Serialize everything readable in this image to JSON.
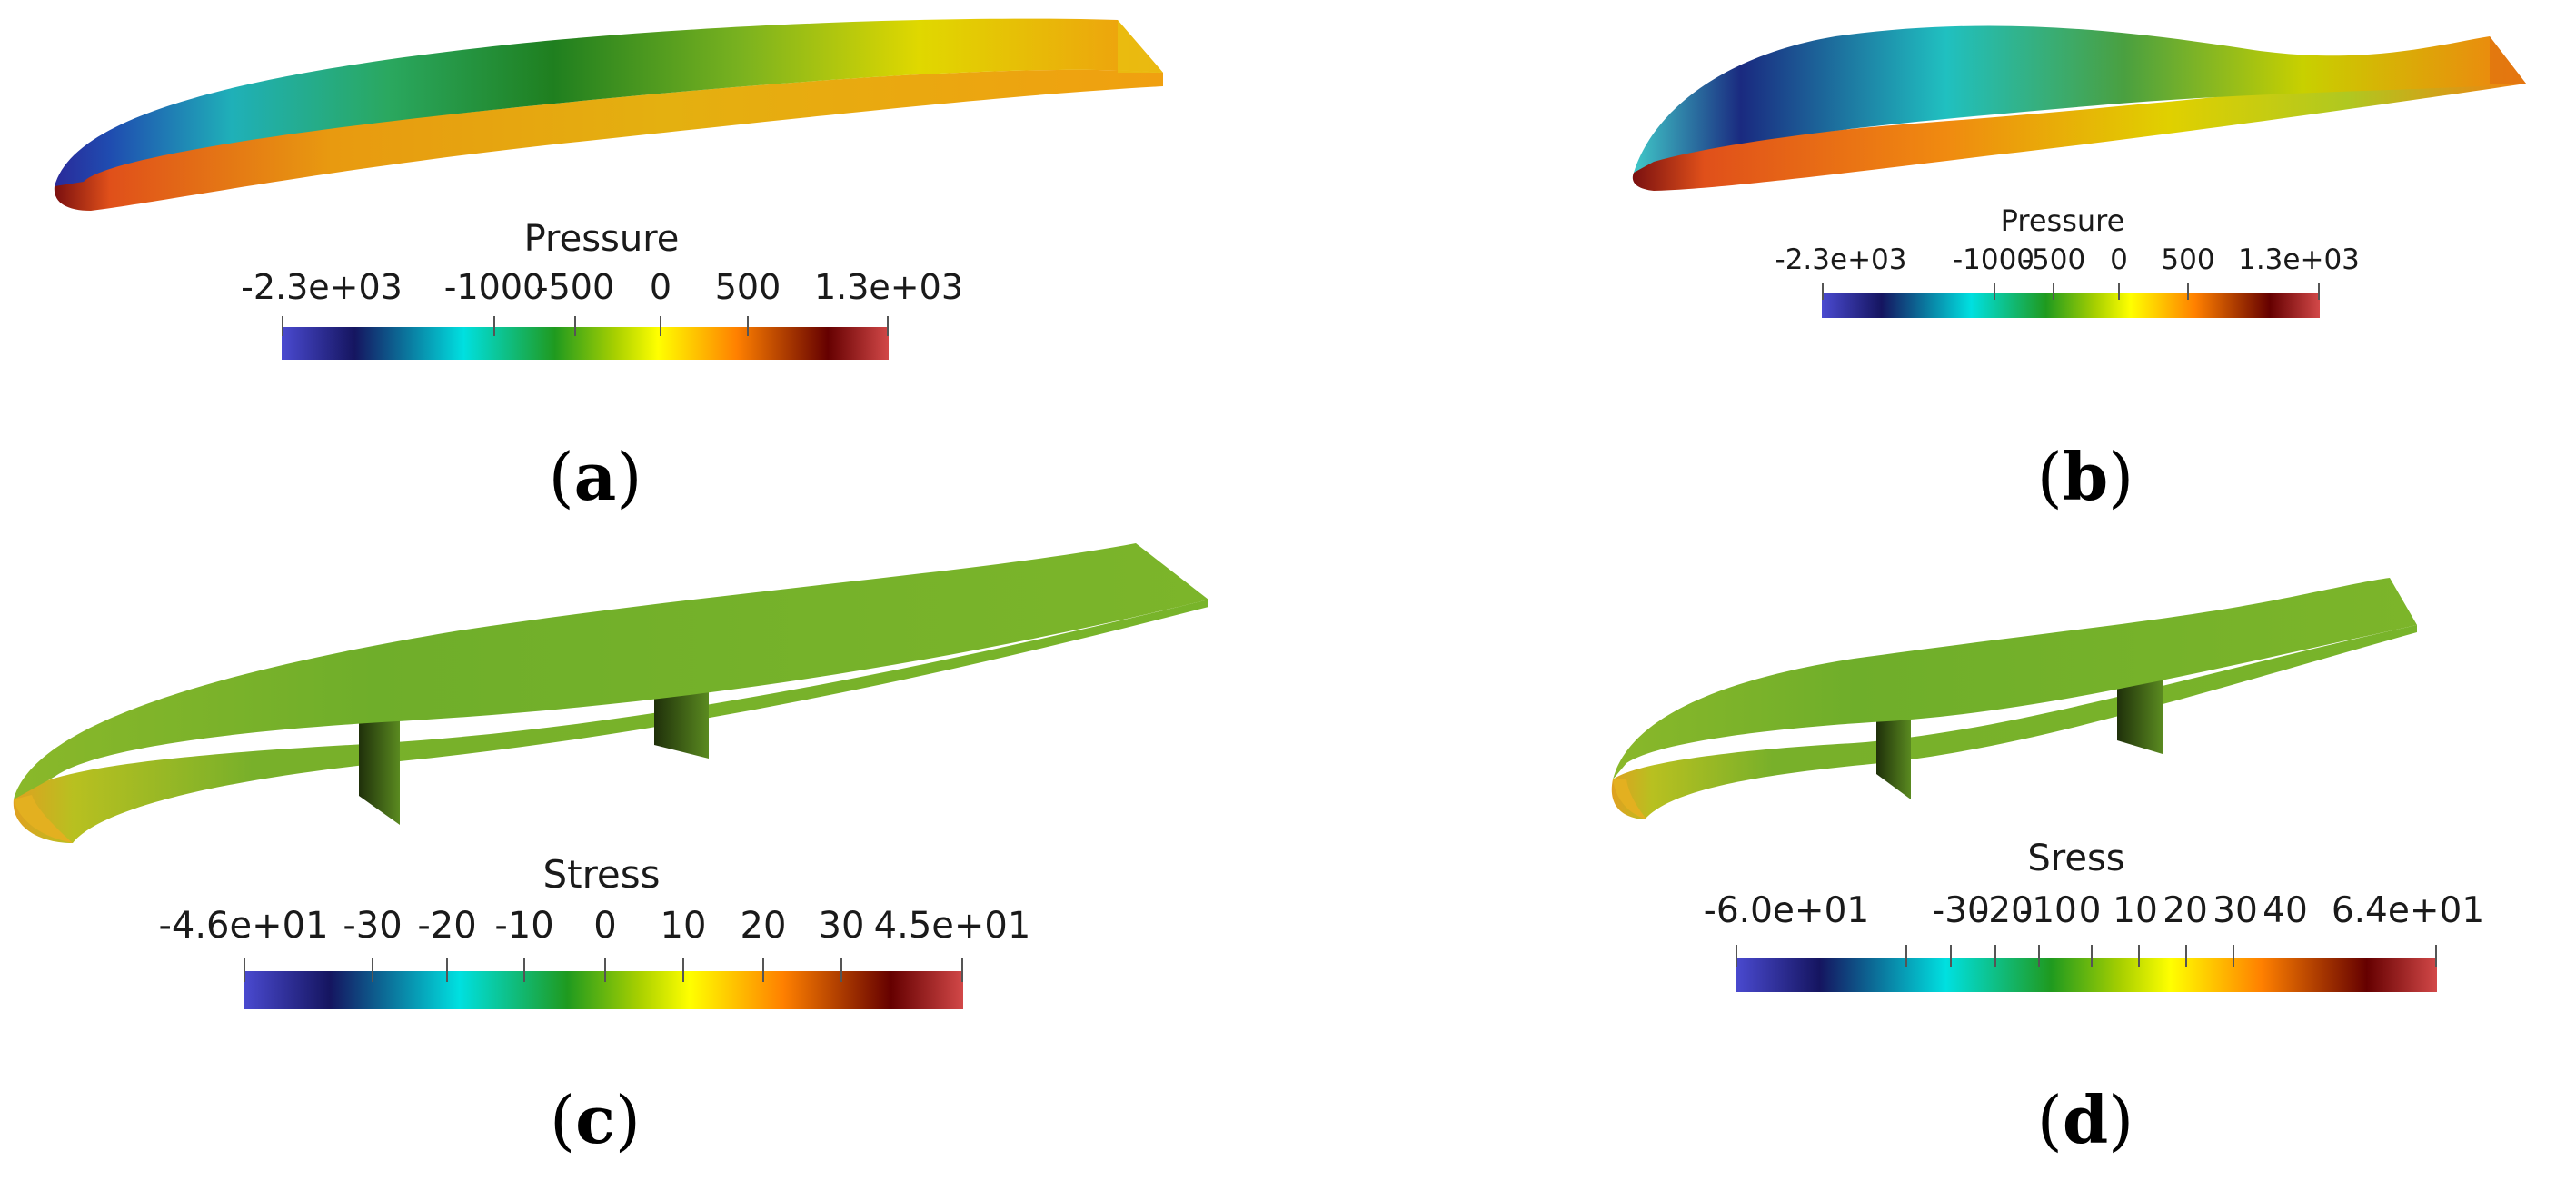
{
  "colors": {
    "colormap": [
      "#3b3bc4",
      "#1a1a6e",
      "#00e5e5",
      "#1fa21f",
      "#8cc21a",
      "#ffff00",
      "#ff8c00",
      "#6b0000",
      "#cc3a3a"
    ],
    "surface_green": "#6fb52a",
    "spar_dark": "#2b4010"
  },
  "panels": [
    {
      "id": "a",
      "label_open": "(",
      "label_letter": "a",
      "label_close": ")",
      "colorbar": {
        "title": "Pressure",
        "ticks": [
          "-2.3e+03",
          "-1000",
          "-500",
          "0",
          "500",
          "1.3e+03"
        ]
      }
    },
    {
      "id": "b",
      "label_open": "(",
      "label_letter": "b",
      "label_close": ")",
      "colorbar": {
        "title": "Pressure",
        "ticks": [
          "-2.3e+03",
          "-1000",
          "-500",
          "0",
          "500",
          "1.3e+03"
        ]
      }
    },
    {
      "id": "c",
      "label_open": "(",
      "label_letter": "c",
      "label_close": ")",
      "colorbar": {
        "title": "Stress",
        "ticks": [
          "-4.6e+01",
          "-30",
          "-20",
          "-10",
          "0",
          "10",
          "20",
          "30",
          "4.5e+01"
        ]
      }
    },
    {
      "id": "d",
      "label_open": "(",
      "label_letter": "d",
      "label_close": ")",
      "colorbar": {
        "title": "Sress",
        "ticks": [
          "-6.0e+01",
          "-30",
          "-20",
          "-10",
          "0",
          "10",
          "20",
          "30",
          "40",
          "6.4e+01"
        ]
      }
    }
  ]
}
